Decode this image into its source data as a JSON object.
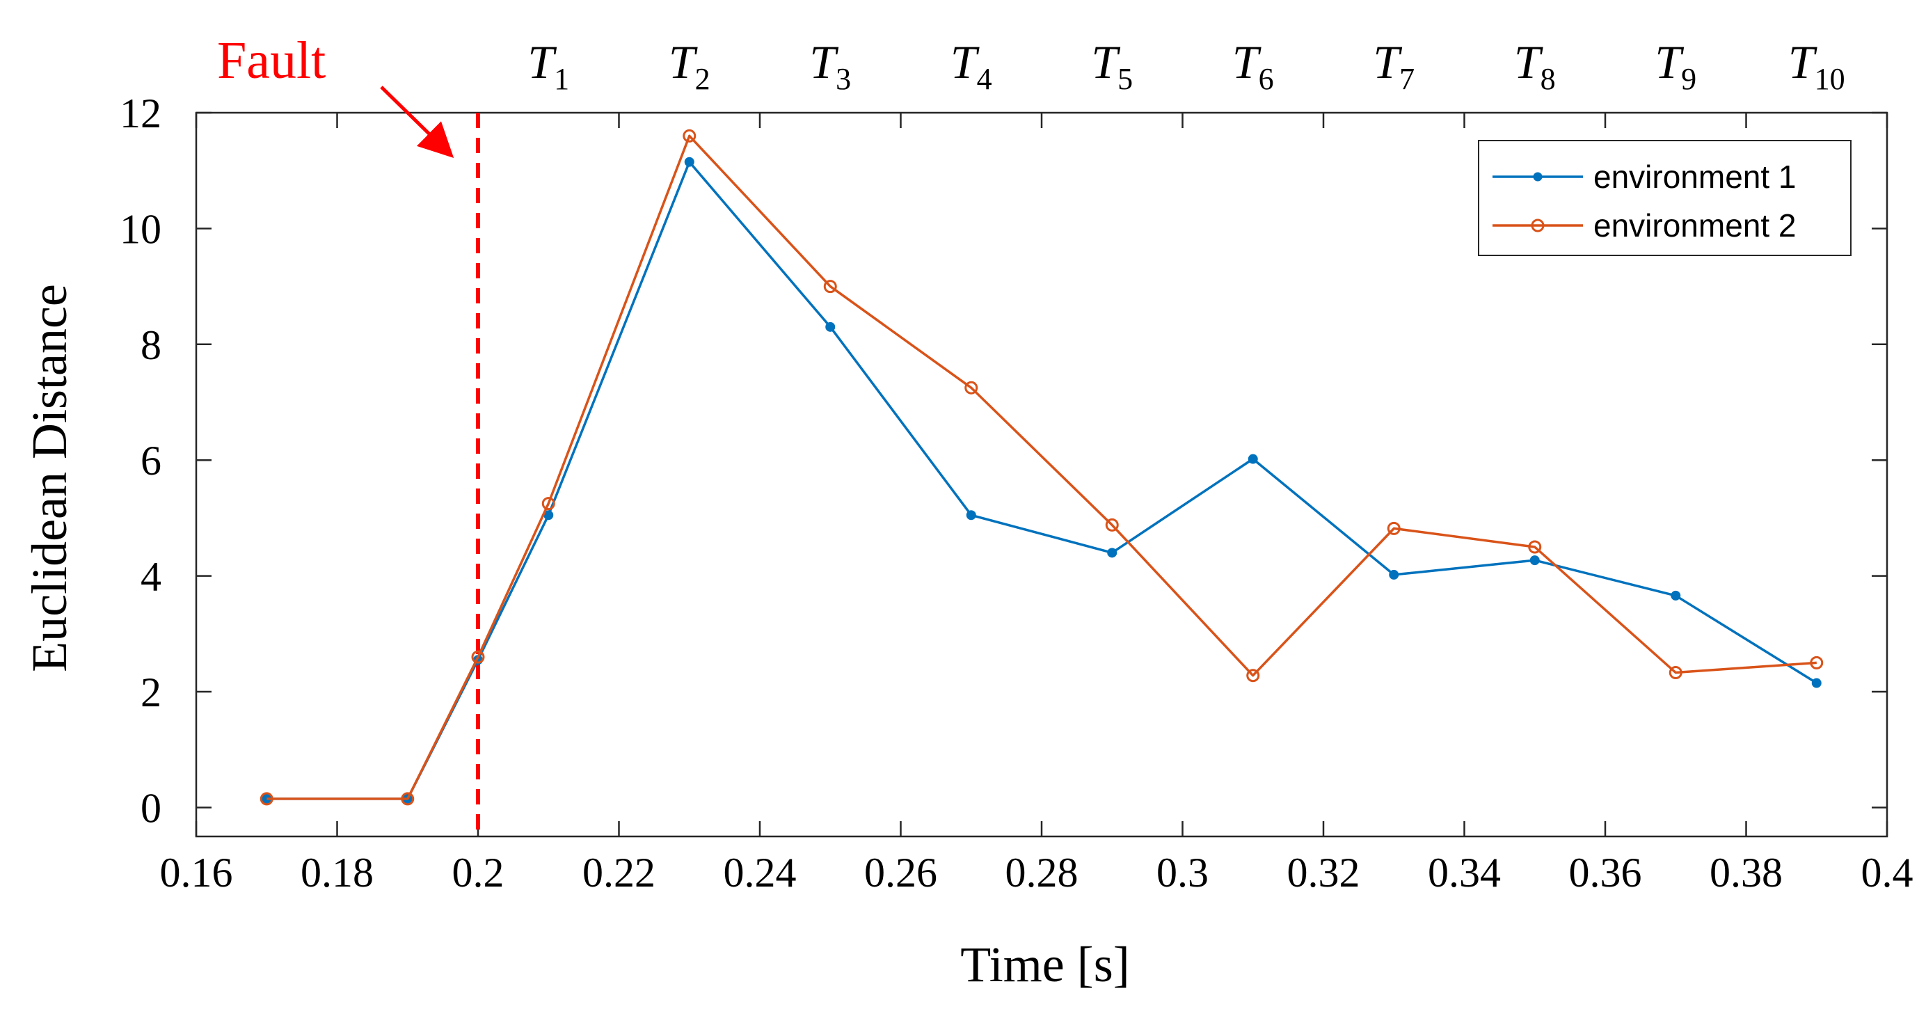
{
  "chart_data": {
    "type": "line",
    "title": "",
    "xlabel": "Time [s]",
    "ylabel": "Euclidean Distance",
    "xlim": [
      0.16,
      0.4
    ],
    "ylim": [
      -0.5,
      12
    ],
    "xticks": [
      0.16,
      0.18,
      0.2,
      0.22,
      0.24,
      0.26,
      0.28,
      0.3,
      0.32,
      0.34,
      0.36,
      0.38,
      0.4
    ],
    "xtick_labels": [
      "0.16",
      "0.18",
      "0.2",
      "0.22",
      "0.24",
      "0.26",
      "0.28",
      "0.3",
      "0.32",
      "0.34",
      "0.36",
      "0.38",
      "0.4"
    ],
    "yticks": [
      0,
      2,
      4,
      6,
      8,
      10,
      12
    ],
    "ytick_labels": [
      "0",
      "2",
      "4",
      "6",
      "8",
      "10",
      "12"
    ],
    "x": [
      0.17,
      0.19,
      0.2,
      0.21,
      0.23,
      0.25,
      0.27,
      0.29,
      0.31,
      0.33,
      0.35,
      0.37,
      0.39
    ],
    "series": [
      {
        "name": "environment 1",
        "color": "#0072BD",
        "marker": "dot",
        "values": [
          0.15,
          0.15,
          2.55,
          5.05,
          11.15,
          8.3,
          5.05,
          4.4,
          6.02,
          4.02,
          4.27,
          3.66,
          2.15
        ]
      },
      {
        "name": "environment 2",
        "color": "#D95319",
        "marker": "circle",
        "values": [
          0.15,
          0.15,
          2.6,
          5.25,
          11.6,
          9.0,
          7.25,
          4.88,
          2.28,
          4.82,
          4.5,
          2.33,
          2.5
        ]
      }
    ],
    "legend_position": "top-right",
    "grid": false,
    "annotations": {
      "fault": {
        "label": "Fault",
        "x": 0.2,
        "color": "#FF0000"
      },
      "time_markers": [
        {
          "base": "T",
          "sub": "1",
          "x": 0.21
        },
        {
          "base": "T",
          "sub": "2",
          "x": 0.23
        },
        {
          "base": "T",
          "sub": "3",
          "x": 0.25
        },
        {
          "base": "T",
          "sub": "4",
          "x": 0.27
        },
        {
          "base": "T",
          "sub": "5",
          "x": 0.29
        },
        {
          "base": "T",
          "sub": "6",
          "x": 0.31
        },
        {
          "base": "T",
          "sub": "7",
          "x": 0.33
        },
        {
          "base": "T",
          "sub": "8",
          "x": 0.35
        },
        {
          "base": "T",
          "sub": "9",
          "x": 0.37
        },
        {
          "base": "T",
          "sub": "10",
          "x": 0.39
        }
      ]
    }
  }
}
